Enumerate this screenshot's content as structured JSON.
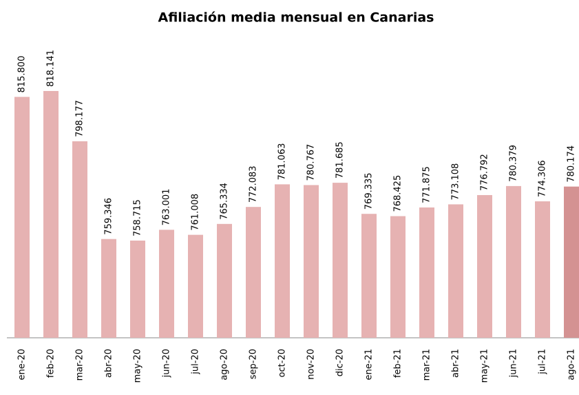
{
  "chart_data": {
    "type": "bar",
    "title": "Afiliación media mensual en Canarias",
    "categories": [
      "ene-20",
      "feb-20",
      "mar-20",
      "abr-20",
      "may-20",
      "jun-20",
      "jul-20",
      "ago-20",
      "sep-20",
      "oct-20",
      "nov-20",
      "dic-20",
      "ene-21",
      "feb-21",
      "mar-21",
      "abr-21",
      "may-21",
      "jun-21",
      "jul-21",
      "ago-21"
    ],
    "values": [
      815800,
      818141,
      798177,
      759346,
      758715,
      763001,
      761008,
      765334,
      772083,
      781063,
      780767,
      781685,
      769335,
      768425,
      771875,
      773108,
      776792,
      780379,
      774306,
      780174
    ],
    "value_labels": [
      "815.800",
      "818.141",
      "798.177",
      "759.346",
      "758.715",
      "763.001",
      "761.008",
      "765.334",
      "772.083",
      "781.063",
      "780.767",
      "781.685",
      "769.335",
      "768.425",
      "771.875",
      "773.108",
      "776.792",
      "780.379",
      "774.306",
      "780.174"
    ],
    "colors": [
      "#e6b2b2",
      "#e6b2b2",
      "#e6b2b2",
      "#e6b2b2",
      "#e6b2b2",
      "#e6b2b2",
      "#e6b2b2",
      "#e6b2b2",
      "#e6b2b2",
      "#e6b2b2",
      "#e6b2b2",
      "#e6b2b2",
      "#e6b2b2",
      "#e6b2b2",
      "#e6b2b2",
      "#e6b2b2",
      "#e6b2b2",
      "#e6b2b2",
      "#e6b2b2",
      "#d49292"
    ]
  }
}
